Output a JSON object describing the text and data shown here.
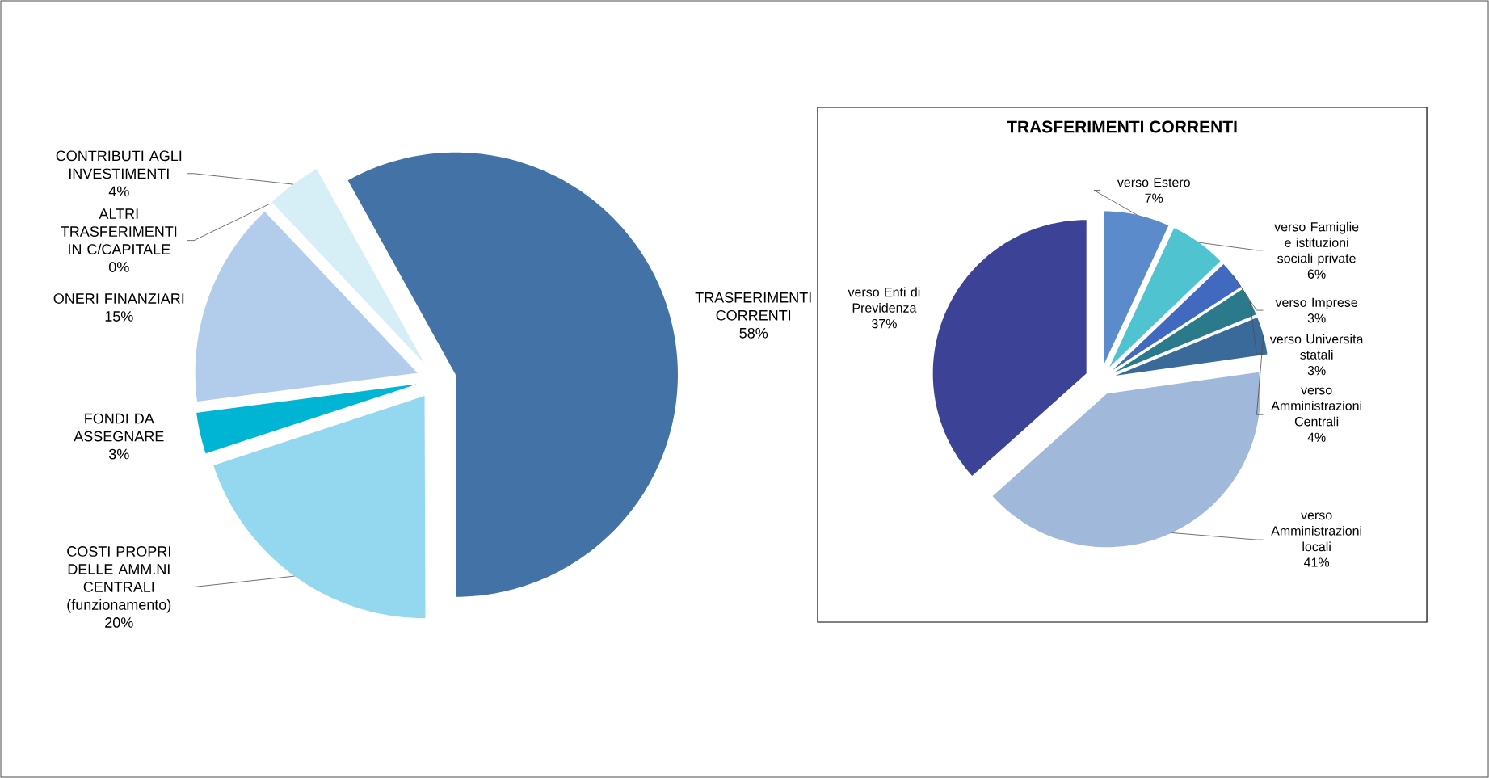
{
  "chart_data": [
    {
      "type": "pie",
      "categories": [
        "TRASFERIMENTI CORRENTI",
        "COSTI PROPRI DELLE AMM.NI CENTRALI (funzionamento)",
        "FONDI DA ASSEGNARE",
        "ONERI FINANZIARI",
        "ALTRI TRASFERIMENTI IN C/CAPITALE",
        "CONTRIBUTI AGLI INVESTIMENTI"
      ],
      "values": [
        58,
        20,
        3,
        15,
        0,
        4
      ],
      "value_labels": [
        "58%",
        "20%",
        "3%",
        "15%",
        "0%",
        "4%"
      ],
      "colors": [
        "#4272a6",
        "#93d8ef",
        "#00b4d4",
        "#b1cdeb",
        "#5b8fd0",
        "#d6eef6"
      ]
    },
    {
      "type": "pie",
      "title": "TRASFERIMENTI CORRENTI",
      "categories": [
        "verso Estero",
        "verso Famiglie e istituzioni sociali private",
        "verso Imprese",
        "verso Universita statali",
        "verso Amministrazioni Centrali",
        "verso Amministrazioni locali",
        "verso Enti di Previdenza"
      ],
      "values": [
        7,
        6,
        3,
        3,
        4,
        41,
        37
      ],
      "value_labels": [
        "7%",
        "6%",
        "3%",
        "3%",
        "4%",
        "41%",
        "37%"
      ],
      "colors": [
        "#5b8bca",
        "#4fc4d0",
        "#4169c0",
        "#2a7a8c",
        "#3a6a9a",
        "#a0b9db",
        "#3c4396"
      ]
    }
  ]
}
